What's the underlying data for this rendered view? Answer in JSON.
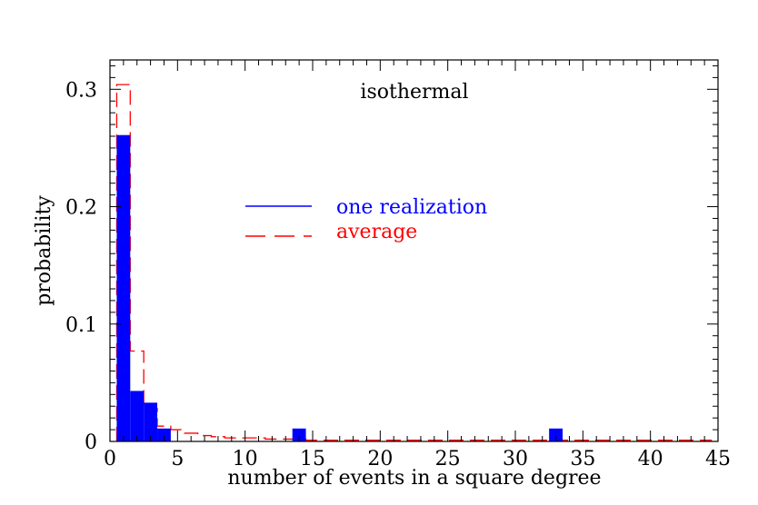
{
  "chart_data": {
    "type": "bar",
    "title": "isothermal",
    "xlabel": "number of events in a square degree",
    "ylabel": "probability",
    "xlim": [
      0,
      45
    ],
    "ylim": [
      0,
      0.325
    ],
    "x_ticks": [
      "0",
      "5",
      "10",
      "15",
      "20",
      "25",
      "30",
      "35",
      "40",
      "45"
    ],
    "y_ticks": [
      "0",
      "0.1",
      "0.2",
      "0.3"
    ],
    "legend_position": "center",
    "series": [
      {
        "name": "one realization",
        "style": "filled-histogram",
        "color": "#0000ff",
        "bin_width": 1,
        "x": [
          1,
          2,
          3,
          4,
          14,
          33
        ],
        "values": [
          0.261,
          0.043,
          0.033,
          0.011,
          0.011,
          0.011
        ]
      },
      {
        "name": "average",
        "style": "dashed-step",
        "color": "#ff0000",
        "bin_width": 1,
        "x": [
          1,
          2,
          3,
          4,
          5,
          6,
          7,
          8,
          9,
          10,
          11,
          12,
          13,
          14,
          15,
          16,
          17,
          18,
          19,
          20,
          21,
          22,
          23,
          24,
          25,
          26,
          27,
          28,
          29,
          30,
          31,
          32,
          33,
          34,
          35,
          36,
          37,
          38,
          39,
          40,
          41,
          42,
          43,
          44
        ],
        "values": [
          0.304,
          0.077,
          0.028,
          0.013,
          0.01,
          0.007,
          0.005,
          0.004,
          0.003,
          0.003,
          0.003,
          0.002,
          0.002,
          0.002,
          0.001,
          0.001,
          0.001,
          0.001,
          0.001,
          0.001,
          0.001,
          0.001,
          0.001,
          0.001,
          0.001,
          0.001,
          0.001,
          0.001,
          0.001,
          0.001,
          0.001,
          0.001,
          0.001,
          0.001,
          0.001,
          0.001,
          0.001,
          0.001,
          0.001,
          0.001,
          0.001,
          0.001,
          0.001,
          0.001
        ]
      }
    ]
  }
}
